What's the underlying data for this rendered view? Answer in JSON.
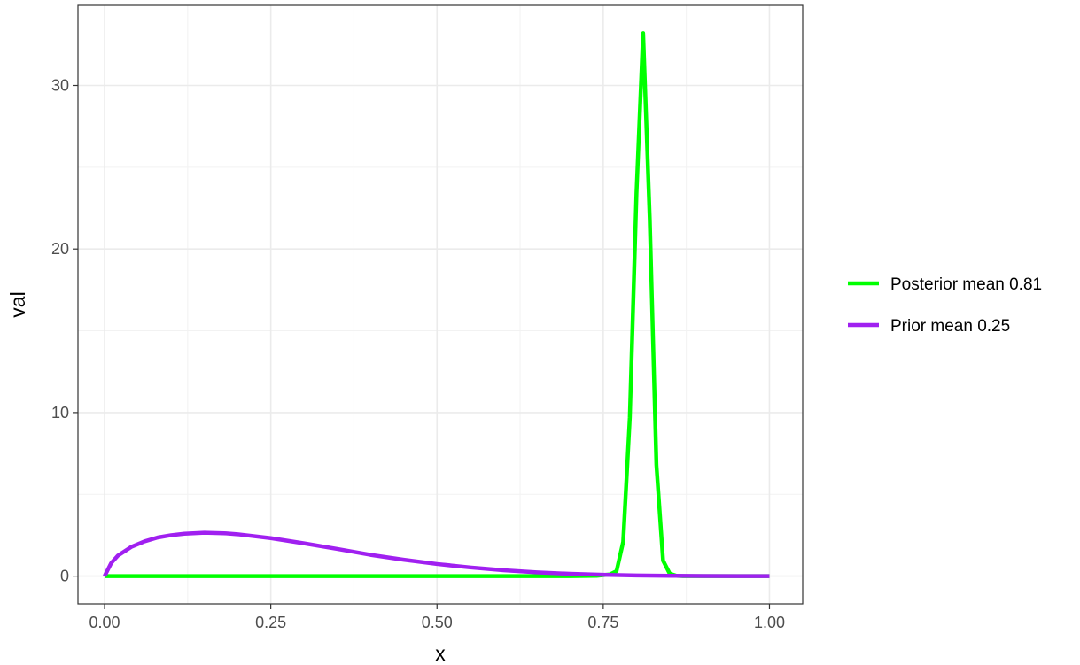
{
  "chart_data": {
    "type": "line",
    "xlabel": "x",
    "ylabel": "val",
    "xlim": [
      -0.04,
      1.05
    ],
    "ylim": [
      -1.7,
      34.9
    ],
    "x_ticks": [
      {
        "value": 0,
        "label": "0.00"
      },
      {
        "value": 0.25,
        "label": "0.25"
      },
      {
        "value": 0.5,
        "label": "0.50"
      },
      {
        "value": 0.75,
        "label": "0.75"
      },
      {
        "value": 1,
        "label": "1.00"
      }
    ],
    "y_ticks": [
      {
        "value": 0,
        "label": "0"
      },
      {
        "value": 10,
        "label": "10"
      },
      {
        "value": 20,
        "label": "20"
      },
      {
        "value": 30,
        "label": "30"
      }
    ],
    "grid": true,
    "legend_position": "right",
    "series": [
      {
        "name": "Posterior mean 0.81",
        "color": "#00ff00",
        "x": [
          0,
          0.1,
          0.2,
          0.3,
          0.4,
          0.5,
          0.6,
          0.7,
          0.74,
          0.76,
          0.77,
          0.78,
          0.79,
          0.8,
          0.81,
          0.82,
          0.83,
          0.84,
          0.85,
          0.86,
          0.87,
          0.9,
          0.95,
          1.0
        ],
        "y": [
          0,
          0,
          0,
          0,
          0,
          0,
          0,
          0,
          0.02,
          0.1,
          0.3,
          2.1,
          9.7,
          23.4,
          33.2,
          21.8,
          6.8,
          0.95,
          0.15,
          0.02,
          0,
          0,
          0,
          0
        ]
      },
      {
        "name": "Prior mean 0.25",
        "color": "#a020f0",
        "x": [
          0,
          0.01,
          0.02,
          0.04,
          0.06,
          0.08,
          0.1,
          0.12,
          0.15,
          0.18,
          0.2,
          0.25,
          0.3,
          0.35,
          0.4,
          0.45,
          0.5,
          0.55,
          0.6,
          0.65,
          0.7,
          0.75,
          0.8,
          0.85,
          0.9,
          0.95,
          1.0
        ],
        "y": [
          0,
          0.8,
          1.25,
          1.78,
          2.12,
          2.36,
          2.5,
          2.59,
          2.65,
          2.62,
          2.56,
          2.32,
          2.0,
          1.66,
          1.3,
          1.0,
          0.74,
          0.53,
          0.36,
          0.23,
          0.14,
          0.08,
          0.04,
          0.02,
          0.005,
          0.001,
          0
        ]
      }
    ]
  }
}
